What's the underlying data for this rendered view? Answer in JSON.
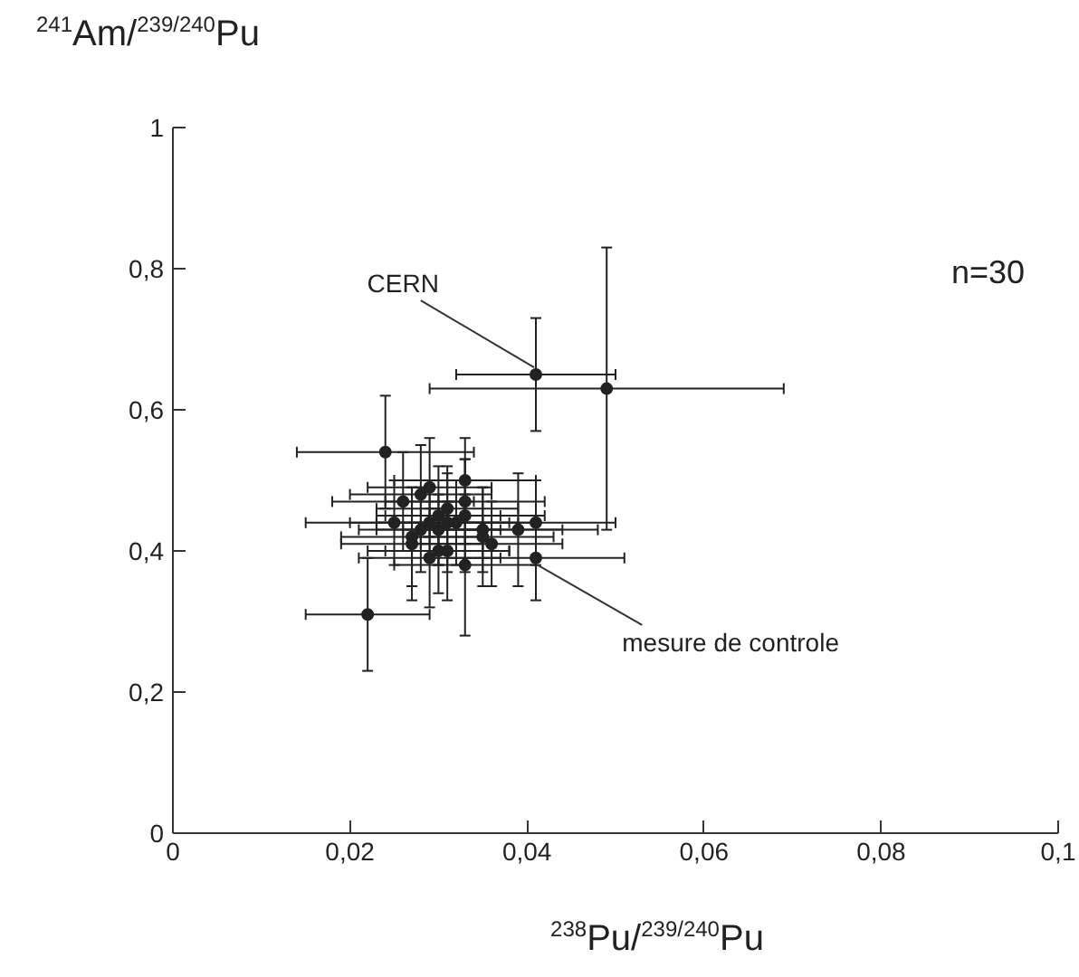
{
  "chart_data": {
    "type": "scatter",
    "xlabel": "$^{238}$Pu/$^{239/240}$Pu",
    "ylabel": "$^{241}$Am/$^{239/240}$Pu",
    "xlim": [
      0,
      0.1
    ],
    "ylim": [
      0,
      1
    ],
    "xticks": [
      0,
      {
        "value": 0.02,
        "label": "0,02"
      },
      {
        "value": 0.04,
        "label": "0,04"
      },
      {
        "value": 0.06,
        "label": "0,06"
      },
      {
        "value": 0.08,
        "label": "0,08"
      },
      {
        "value": 0.1,
        "label": "0,1"
      }
    ],
    "yticks": [
      0,
      {
        "value": 0.2,
        "label": "0,2"
      },
      {
        "value": 0.4,
        "label": "0,4"
      },
      {
        "value": 0.6,
        "label": "0,6"
      },
      {
        "value": 0.8,
        "label": "0,8"
      },
      1
    ],
    "grid": false,
    "marker": "circle",
    "series": [
      {
        "color": "#222222",
        "x": [
          0.041,
          0.049,
          0.024,
          0.022,
          0.041,
          0.026,
          0.028,
          0.033,
          0.03,
          0.031,
          0.033,
          0.025,
          0.027,
          0.028,
          0.029,
          0.031,
          0.035,
          0.039,
          0.041,
          0.029,
          0.03,
          0.031,
          0.033,
          0.033,
          0.029,
          0.027,
          0.032,
          0.035,
          0.03,
          0.036
        ],
        "values": [
          0.65,
          0.63,
          0.54,
          0.31,
          0.39,
          0.47,
          0.48,
          0.47,
          0.45,
          0.46,
          0.45,
          0.44,
          0.42,
          0.43,
          0.44,
          0.44,
          0.43,
          0.43,
          0.44,
          0.39,
          0.4,
          0.4,
          0.38,
          0.5,
          0.49,
          0.41,
          0.44,
          0.42,
          0.43,
          0.41
        ],
        "xerrors": [
          0.009,
          0.02,
          0.01,
          0.007,
          0.01,
          0.008,
          0.008,
          0.009,
          0.007,
          0.008,
          0.009,
          0.01,
          0.008,
          0.007,
          0.009,
          0.008,
          0.009,
          0.009,
          0.009,
          0.008,
          0.008,
          0.007,
          0.008,
          0.008,
          0.007,
          0.008,
          0.009,
          0.008,
          0.007,
          0.008
        ],
        "errors": [
          0.08,
          0.2,
          0.08,
          0.08,
          0.06,
          0.07,
          0.07,
          0.06,
          0.07,
          0.06,
          0.08,
          0.06,
          0.07,
          0.06,
          0.05,
          0.07,
          0.06,
          0.08,
          0.06,
          0.07,
          0.06,
          0.07,
          0.1,
          0.06,
          0.07,
          0.08,
          0.06,
          0.07,
          0.05,
          0.06
        ]
      }
    ],
    "annotations": [
      {
        "text": "CERN",
        "x": 0.041,
        "y": 0.65
      },
      "n=30",
      {
        "text": "mesure de controle",
        "x": 0.041,
        "y": 0.39
      }
    ]
  }
}
